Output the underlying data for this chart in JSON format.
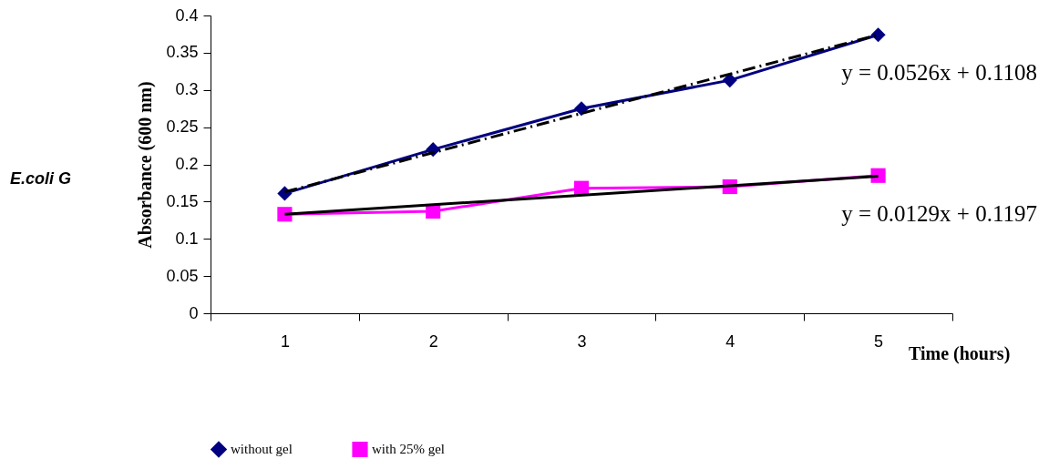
{
  "chart_data": {
    "type": "line",
    "categories": [
      "1",
      "2",
      "3",
      "4",
      "5"
    ],
    "series": [
      {
        "name": "without gel",
        "color": "#000080",
        "marker": "diamond",
        "values": [
          0.161,
          0.22,
          0.275,
          0.313,
          0.374
        ]
      },
      {
        "name": "with 25% gel",
        "color": "#ff00ff",
        "marker": "square",
        "values": [
          0.133,
          0.137,
          0.168,
          0.17,
          0.185
        ]
      },
      {
        "type": "line",
        "color": "#000000",
        "marker": "none",
        "line_style": "dashed",
        "x": [
          "1",
          "5"
        ],
        "values": [
          0.163,
          0.374
        ]
      },
      {
        "type": "line",
        "color": "#000000",
        "marker": "none",
        "line_style": "solid",
        "x": [
          "1",
          "5"
        ],
        "values": [
          0.133,
          0.184
        ]
      }
    ],
    "xlabel": "Time (hours)",
    "ylabel": "Absorbance (600 nm)",
    "ylim": [
      0,
      0.4
    ],
    "yticks": [
      0,
      0.05,
      0.1,
      0.15,
      0.2,
      0.25,
      0.3,
      0.35,
      0.4
    ],
    "annotations": [
      "E.coli G",
      {
        "text": "y = 0.0526x + 0.1108",
        "x": "5",
        "y": 0.374
      },
      {
        "text": "y = 0.0129x + 0.1197",
        "x": "5",
        "y": 0.185
      }
    ],
    "grid": false,
    "legend": "bottom"
  }
}
